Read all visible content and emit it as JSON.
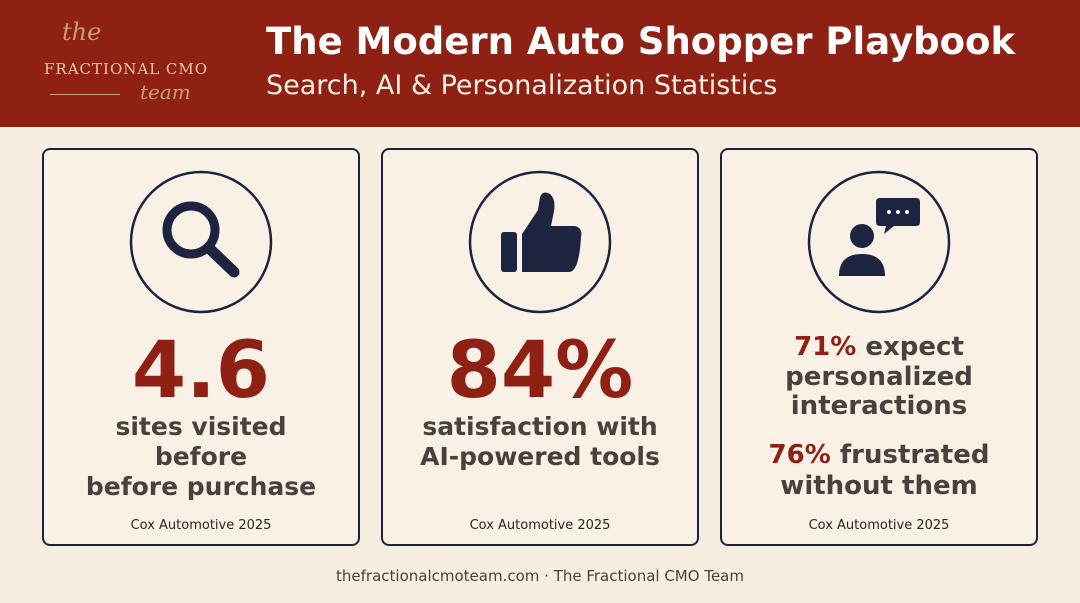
{
  "logo": {
    "top": "the",
    "middle": "FRACTIONAL CMO",
    "bottom": "team"
  },
  "header": {
    "title": "The Modern Auto Shopper Playbook",
    "subtitle": "Search, AI & Personalization Statistics"
  },
  "cards": [
    {
      "stat": "4.6",
      "description": [
        "sites visited",
        "before",
        "before purchase"
      ],
      "source": "Cox Automotive 2025"
    },
    {
      "stat": "84%",
      "description": [
        "satisfaction with",
        "AI-powered tools"
      ],
      "source": "Cox Automotive 2025"
    },
    {
      "highlights": [
        {
          "value": "71%",
          "lines": [
            "expect",
            "personalized",
            "interactions"
          ]
        },
        {
          "value": "76%",
          "lines": [
            "frustrated",
            "without them"
          ]
        }
      ],
      "source": "Cox Automotive 2025"
    }
  ],
  "footer": "thefractionalcmoteam.com · The Fractional CMO Team"
}
